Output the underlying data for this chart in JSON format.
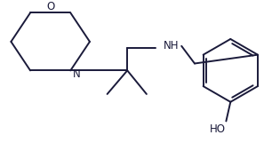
{
  "bg_color": "#ffffff",
  "line_color": "#1a1a3a",
  "text_color": "#1a1a3a",
  "label_N": "N",
  "label_NH": "NH",
  "label_O": "O",
  "label_HO": "HO",
  "figsize": [
    3.15,
    1.61
  ],
  "dpi": 100,
  "lw": 1.4,
  "fontsize": 8.5
}
